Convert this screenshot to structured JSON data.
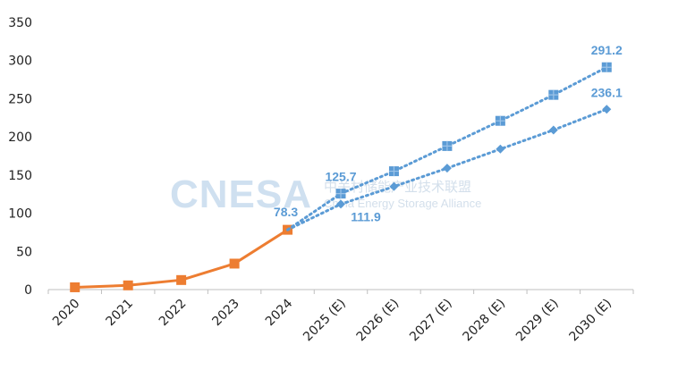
{
  "watermark": {
    "brand": "CNESA",
    "cn_name": "中关村储能产业技术联盟",
    "en_name": "China Energy Storage Alliance"
  },
  "chart_data": {
    "type": "line",
    "title": "",
    "xlabel": "",
    "ylabel": "",
    "ylim": [
      0,
      350
    ],
    "yticks": [
      0,
      50,
      100,
      150,
      200,
      250,
      300,
      350
    ],
    "categories": [
      "2020",
      "2021",
      "2022",
      "2023",
      "2024",
      "2025 (E)",
      "2026 (E)",
      "2027 (E)",
      "2028 (E)",
      "2029 (E)",
      "2030 (E)"
    ],
    "grid": false,
    "legend": "none",
    "series": [
      {
        "style": "solid",
        "marker": "square",
        "color": "#ed7d31",
        "values": [
          3,
          5.5,
          12.5,
          34,
          78.3,
          null,
          null,
          null,
          null,
          null,
          null
        ]
      },
      {
        "style": "dotted",
        "marker": "square",
        "color": "#5b9bd5",
        "values": [
          null,
          null,
          null,
          null,
          78.3,
          125.7,
          155,
          188,
          221,
          255,
          291.2
        ]
      },
      {
        "style": "dotted",
        "marker": "diamond",
        "color": "#5b9bd5",
        "values": [
          null,
          null,
          null,
          null,
          78.3,
          111.9,
          135,
          159,
          184,
          209,
          236.1
        ]
      }
    ],
    "data_labels": [
      {
        "series": 0,
        "index": 4,
        "text": "78.3",
        "pos": "above-left"
      },
      {
        "series": 1,
        "index": 5,
        "text": "125.7",
        "pos": "above"
      },
      {
        "series": 1,
        "index": 10,
        "text": "291.2",
        "pos": "above"
      },
      {
        "series": 2,
        "index": 5,
        "text": "111.9",
        "pos": "below-right"
      },
      {
        "series": 2,
        "index": 10,
        "text": "236.1",
        "pos": "above"
      }
    ]
  }
}
